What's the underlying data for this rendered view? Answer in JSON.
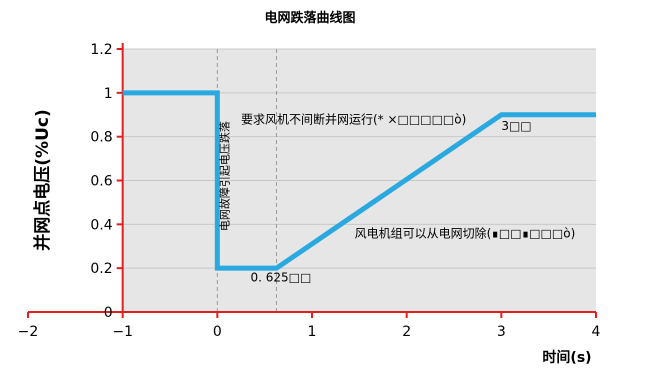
{
  "chart_data": {
    "type": "line",
    "title": "电网跌落曲线图",
    "xlabel": "时间(s)",
    "ylabel": "并网点电压(%Uc)",
    "xlim": [
      -2,
      4
    ],
    "ylim": [
      0,
      1.2
    ],
    "xticks": [
      "−2",
      "−1",
      "0",
      "1",
      "2",
      "3",
      "4"
    ],
    "yticks": [
      "0",
      "0.2",
      "0.4",
      "0.6",
      "0.8",
      "1",
      "1.2"
    ],
    "grid": true,
    "series": [
      {
        "x": [
          -1,
          0,
          0,
          0.625,
          3,
          4
        ],
        "y": [
          1,
          1,
          0.2,
          0.2,
          0.9,
          0.9
        ],
        "color": "#2aa9e0"
      }
    ],
    "shaded_region": {
      "x": [
        -1,
        4
      ],
      "color": "#e6e6e6"
    },
    "vlines": [
      0,
      0.625
    ],
    "annotations": [
      {
        "text": "要求风机不间断并网运行(* ×□□□□□ò)",
        "x": 0.25,
        "y": 0.86
      },
      {
        "text": "3□□",
        "x": 3.0,
        "y": 0.83
      },
      {
        "text": "0. 625□□",
        "x": 0.35,
        "y": 0.14
      },
      {
        "text": "风电机组可以从电网切除(∎□□∎□□□ò)",
        "x": 1.45,
        "y": 0.34
      },
      {
        "text": "电网故障引起电压跌落",
        "x": 0.12,
        "y": 0.62,
        "vertical": true
      }
    ],
    "colors": {
      "axis": "#e02020",
      "line": "#2aa9e0",
      "shade": "#e6e6e6",
      "grid": "#c8c8c8"
    }
  }
}
